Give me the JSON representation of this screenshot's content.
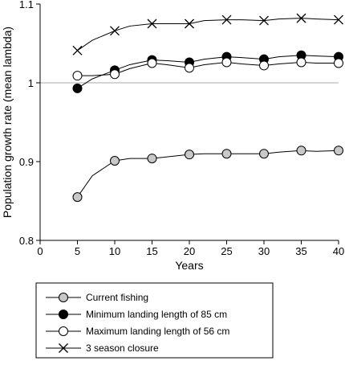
{
  "chart_data": {
    "type": "line",
    "title": "",
    "xlabel": "Years",
    "ylabel": "Population growth rate (mean lambda)",
    "xlim": [
      0,
      40
    ],
    "ylim": [
      0.8,
      1.1
    ],
    "xticks": [
      0,
      5,
      10,
      15,
      20,
      25,
      30,
      35,
      40
    ],
    "xtick_labels": [
      "0",
      "5",
      "10",
      "15",
      "20",
      "25",
      "30",
      "35",
      "40"
    ],
    "yticks": [
      0.8,
      0.9,
      1.0,
      1.1
    ],
    "ytick_labels": [
      "0.8",
      "0.9",
      "1",
      "1.1"
    ],
    "reference_line": 1.0,
    "reference_line_color": "#aaaaaa",
    "grid": false,
    "legend_position": "bottom",
    "series": [
      {
        "name": "Current fishing",
        "marker": "circle-grey",
        "fill": "#c8c8c8",
        "x": [
          5,
          7,
          10,
          12,
          15,
          17,
          20,
          22,
          25,
          27,
          30,
          32,
          35,
          37,
          40
        ],
        "y": [
          0.855,
          0.882,
          0.901,
          0.904,
          0.904,
          0.906,
          0.909,
          0.91,
          0.91,
          0.91,
          0.91,
          0.912,
          0.914,
          0.913,
          0.914
        ],
        "marker_x": [
          5,
          10,
          15,
          20,
          25,
          30,
          35,
          40
        ]
      },
      {
        "name": "Minimum landing length of 85 cm",
        "marker": "circle-black",
        "fill": "#000000",
        "x": [
          5,
          7,
          10,
          12,
          15,
          17,
          20,
          22,
          25,
          27,
          30,
          32,
          35,
          37,
          40
        ],
        "y": [
          0.993,
          1.005,
          1.016,
          1.023,
          1.029,
          1.028,
          1.026,
          1.03,
          1.033,
          1.032,
          1.03,
          1.033,
          1.035,
          1.034,
          1.033
        ],
        "marker_x": [
          5,
          10,
          15,
          20,
          25,
          30,
          35,
          40
        ]
      },
      {
        "name": "Maximum landing length of 56 cm",
        "marker": "circle-white",
        "fill": "#ffffff",
        "x": [
          5,
          7,
          10,
          12,
          15,
          17,
          20,
          22,
          25,
          27,
          30,
          32,
          35,
          37,
          40
        ],
        "y": [
          1.009,
          1.009,
          1.011,
          1.018,
          1.025,
          1.023,
          1.019,
          1.023,
          1.026,
          1.024,
          1.022,
          1.024,
          1.026,
          1.025,
          1.025
        ],
        "marker_x": [
          5,
          10,
          15,
          20,
          25,
          30,
          35,
          40
        ]
      },
      {
        "name": "3 season closure",
        "marker": "cross",
        "fill": "none",
        "x": [
          5,
          7,
          10,
          12,
          15,
          17,
          20,
          22,
          25,
          27,
          30,
          32,
          35,
          37,
          40
        ],
        "y": [
          1.041,
          1.054,
          1.066,
          1.072,
          1.075,
          1.075,
          1.075,
          1.079,
          1.08,
          1.08,
          1.079,
          1.081,
          1.082,
          1.081,
          1.08
        ],
        "marker_x": [
          5,
          10,
          15,
          20,
          25,
          30,
          35,
          40
        ]
      }
    ]
  }
}
